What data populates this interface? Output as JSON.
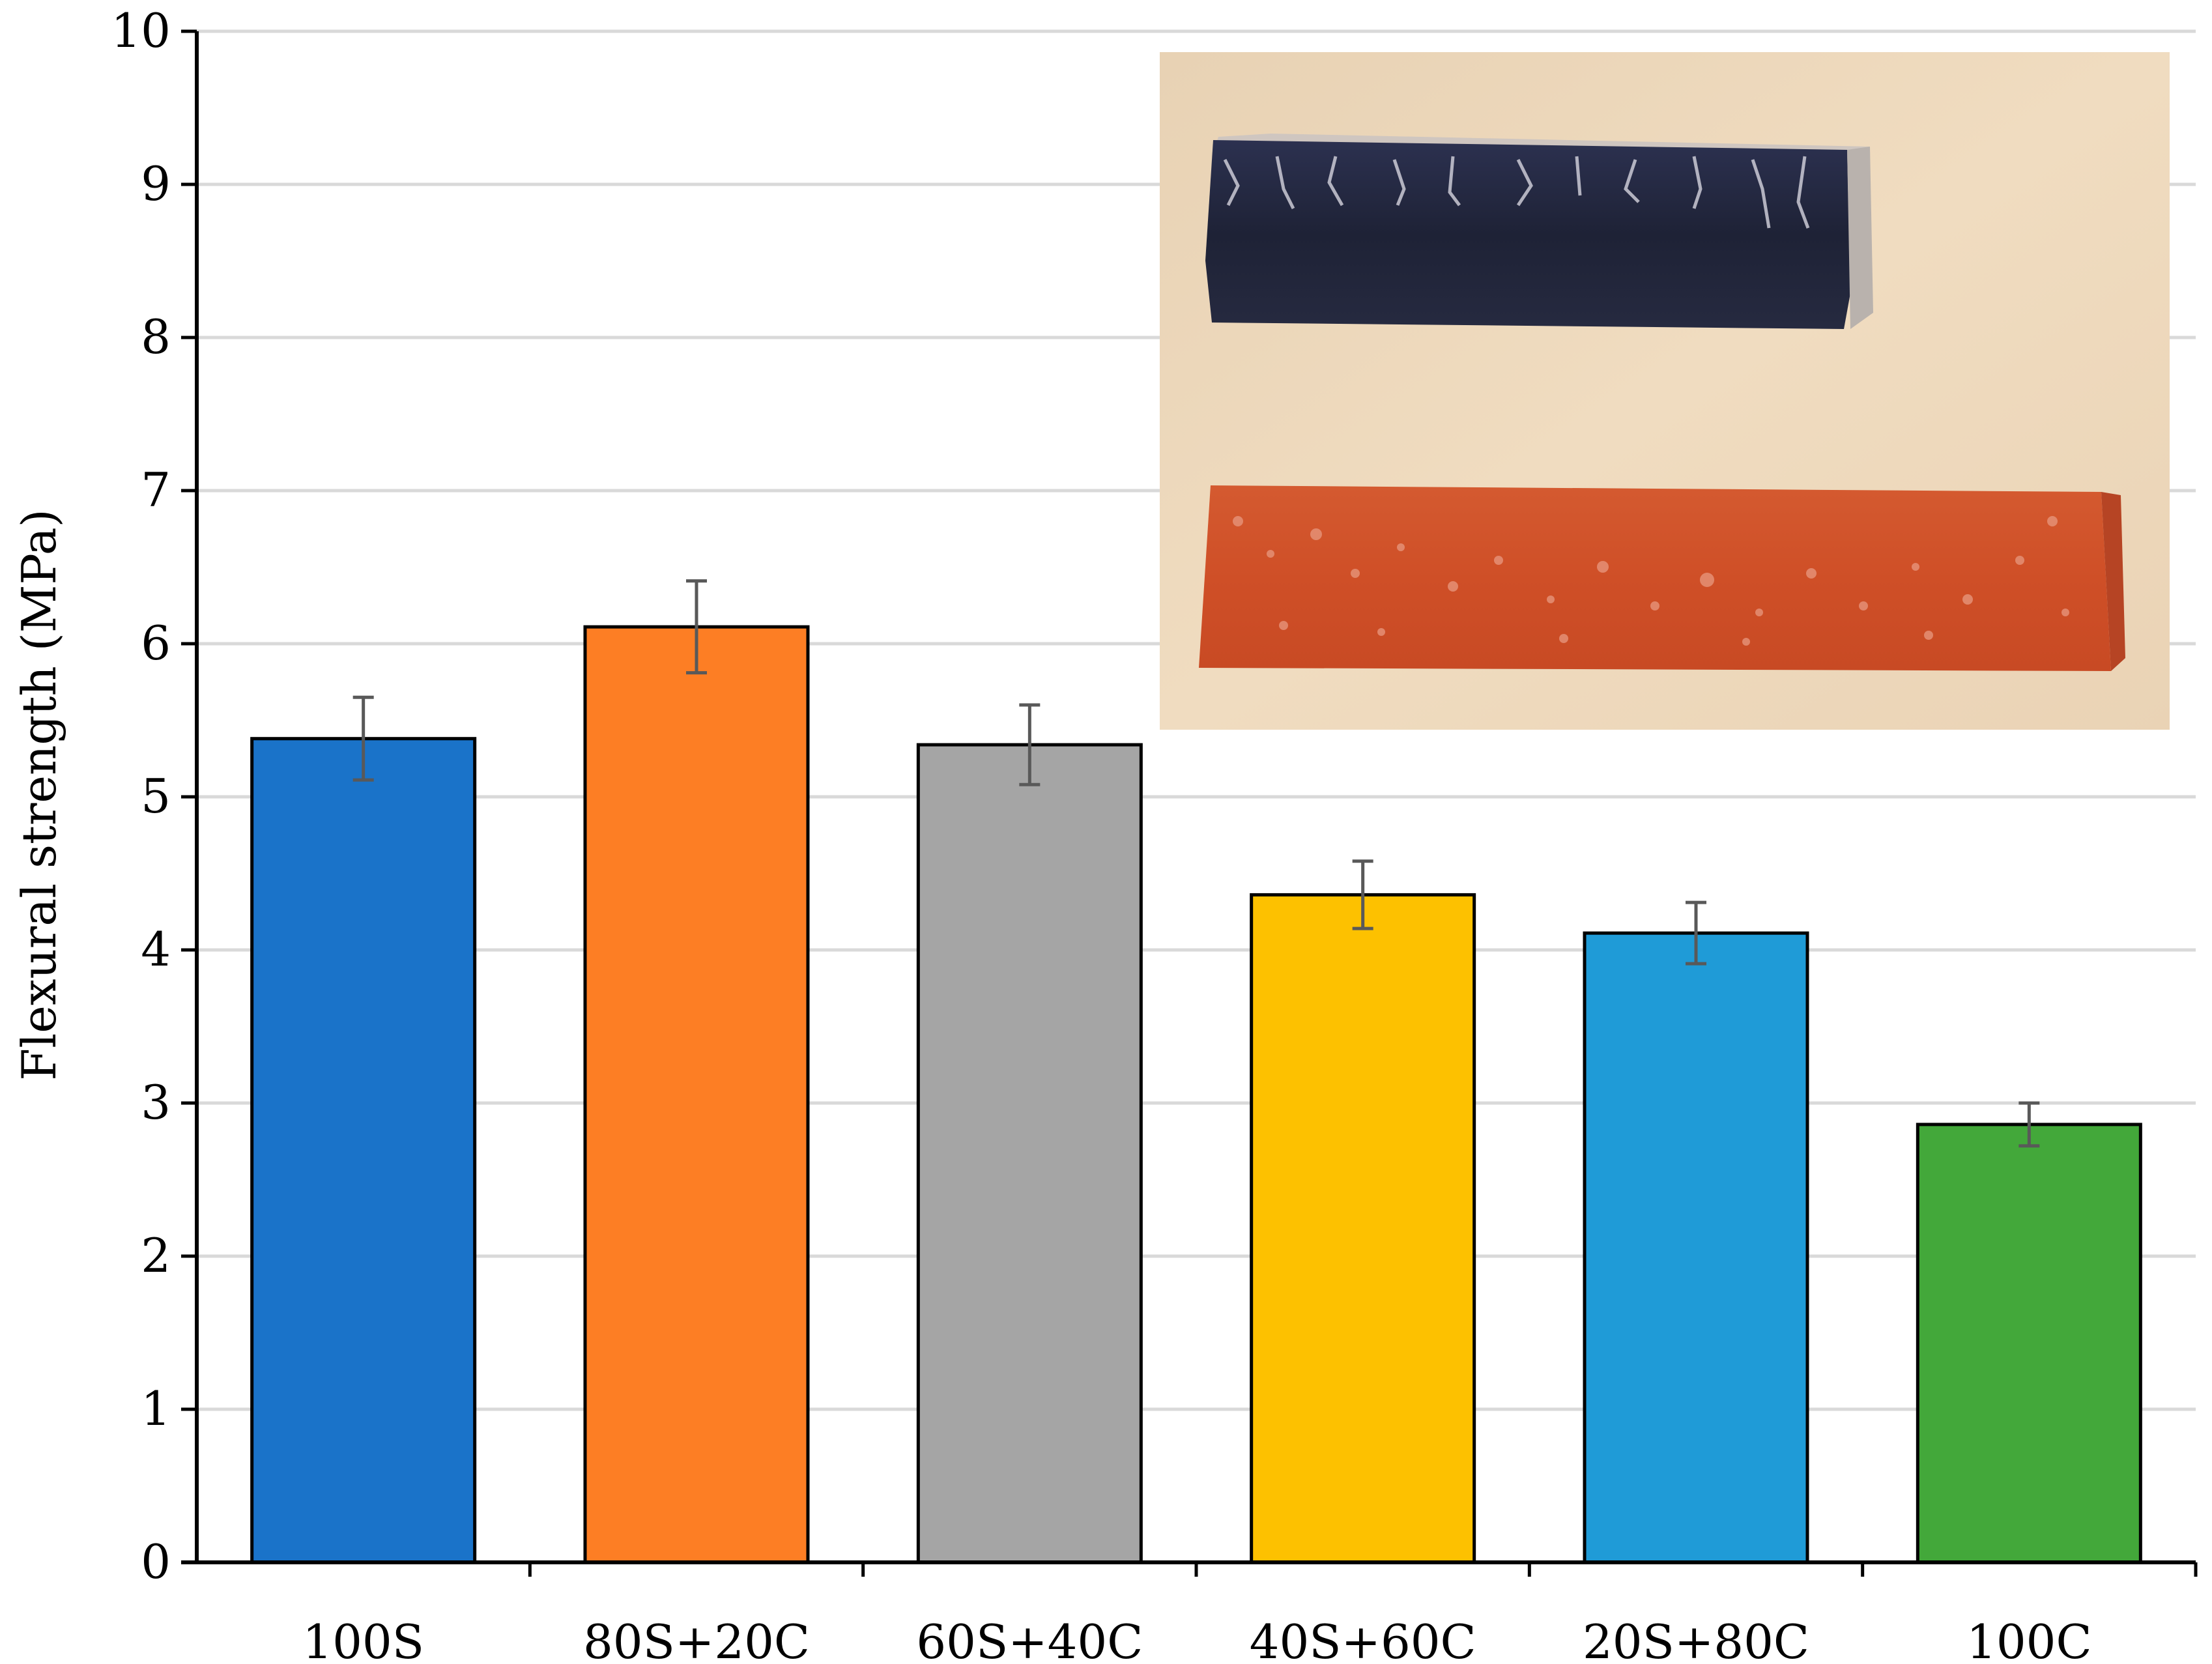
{
  "chart_data": {
    "type": "bar",
    "title": "",
    "xlabel": "",
    "ylabel": "Flexural strength (MPa)",
    "ylim": [
      0,
      10
    ],
    "yticks": [
      0,
      1,
      2,
      3,
      4,
      5,
      6,
      7,
      8,
      9,
      10
    ],
    "grid": true,
    "categories": [
      "100S",
      "80S+20C",
      "60S+40C",
      "40S+60C",
      "20S+80C",
      "100C"
    ],
    "values": [
      5.38,
      6.11,
      5.34,
      4.36,
      4.11,
      2.86
    ],
    "errors": [
      0.27,
      0.3,
      0.26,
      0.22,
      0.2,
      0.14
    ],
    "colors": [
      "#1a73c9",
      "#fd7e24",
      "#a5a5a5",
      "#fdc100",
      "#1f9bd7",
      "#43a83a"
    ],
    "inset": "photo of two specimen bars (dark blue and orange) in top-right corner"
  }
}
